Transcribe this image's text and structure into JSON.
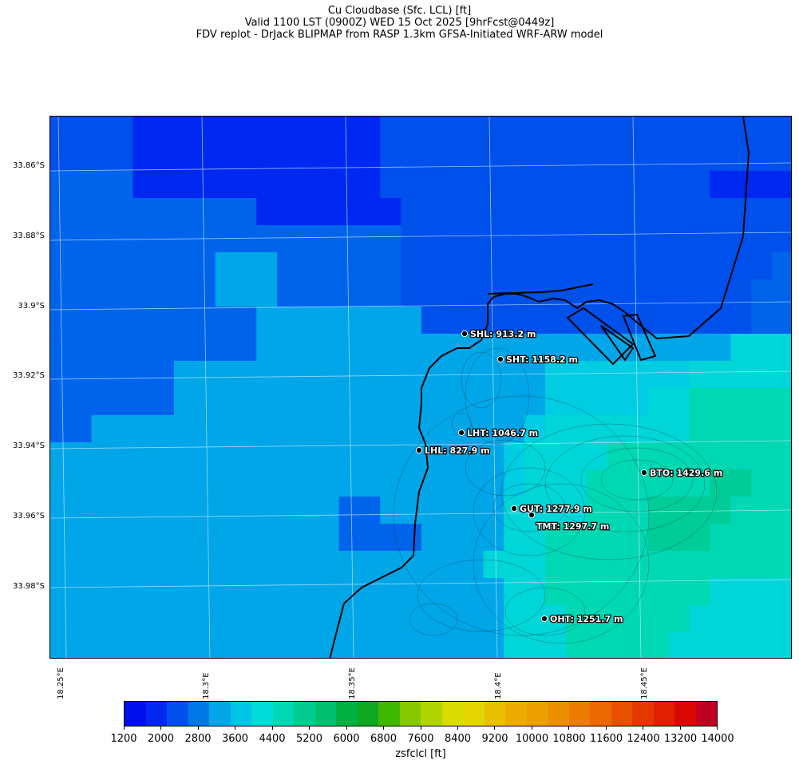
{
  "title": {
    "line1": "Cu Cloudbase (Sfc. LCL) [ft]",
    "line2": "Valid 1100 LST (0900Z) WED 15 Oct 2025 [9hrFcst@0449z]",
    "line3": "FDV replot - DrJack BLIPMAP from RASP 1.3km GFSA-Initiated WRF-ARW model"
  },
  "map": {
    "lat_labels": [
      "33.86°S",
      "33.88°S",
      "33.9°S",
      "33.92°S",
      "33.94°S",
      "33.96°S",
      "33.98°S"
    ],
    "lon_labels": [
      "18.25°E",
      "18.3°E",
      "18.35°E",
      "18.4°E",
      "18.45°E"
    ],
    "stations": [
      {
        "code": "SHL",
        "label": "SHL: 913.2 m"
      },
      {
        "code": "SHT",
        "label": "SHT: 1158.2 m"
      },
      {
        "code": "LHT",
        "label": "LHT: 1046.7 m"
      },
      {
        "code": "LHL",
        "label": "LHL: 827.9 m"
      },
      {
        "code": "BTO",
        "label": "BTO: 1429.6 m"
      },
      {
        "code": "GUT",
        "label": "GUT: 1277.9 m"
      },
      {
        "code": "TMT",
        "label": "TMT: 1297.7 m"
      },
      {
        "code": "OHT",
        "label": "OHT: 1251.7 m"
      }
    ]
  },
  "colorbar": {
    "label": "zsfclcl [ft]",
    "tick_labels": [
      "1200",
      "2000",
      "2800",
      "3600",
      "4400",
      "5200",
      "6000",
      "6800",
      "7600",
      "8400",
      "9200",
      "10000",
      "10800",
      "11600",
      "12400",
      "13200",
      "14000"
    ],
    "colors": [
      "#0010ee",
      "#0028ee",
      "#0050ec",
      "#0078e8",
      "#00a6e8",
      "#00c6e6",
      "#00dcd8",
      "#00d8b4",
      "#00cc90",
      "#00c070",
      "#00b040",
      "#10a820",
      "#40b800",
      "#88c800",
      "#b0d400",
      "#d8dc00",
      "#e4d400",
      "#e8c000",
      "#ecac00",
      "#eca000",
      "#ec9000",
      "#ec7c00",
      "#ec6800",
      "#e85000",
      "#e43800",
      "#e02000",
      "#d80800",
      "#c00020"
    ]
  }
}
